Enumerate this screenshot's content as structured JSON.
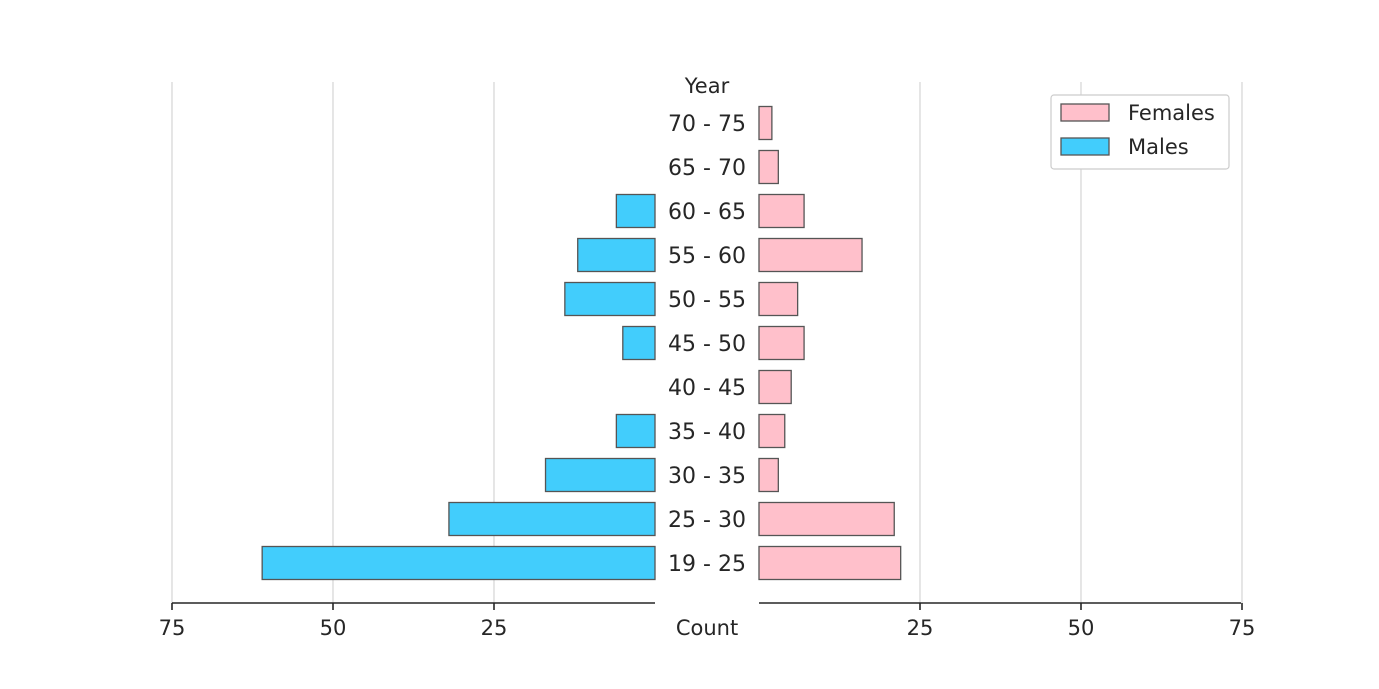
{
  "chart_data": {
    "type": "bar",
    "orientation": "horizontal-population-pyramid",
    "xlabel": "Count",
    "ylabel": "Year",
    "categories": [
      "19 - 25",
      "25 - 30",
      "30 - 35",
      "35 - 40",
      "40 - 45",
      "45 - 50",
      "50 - 55",
      "55 - 60",
      "60 - 65",
      "65 - 70",
      "70 - 75"
    ],
    "x_ticks_left": [
      "75",
      "50",
      "25"
    ],
    "x_ticks_right": [
      "25",
      "50",
      "75"
    ],
    "xlim": [
      0,
      75
    ],
    "grid": true,
    "legend_position": "top-right",
    "series": [
      {
        "name": "Females",
        "side": "right",
        "color": "#ffc0cb",
        "values": [
          22,
          21,
          3,
          4,
          5,
          7,
          6,
          16,
          7,
          3,
          2
        ]
      },
      {
        "name": "Males",
        "side": "left",
        "color": "#42cdfc",
        "values": [
          61,
          32,
          17,
          6,
          0,
          5,
          14,
          12,
          6,
          0,
          0
        ]
      }
    ]
  }
}
